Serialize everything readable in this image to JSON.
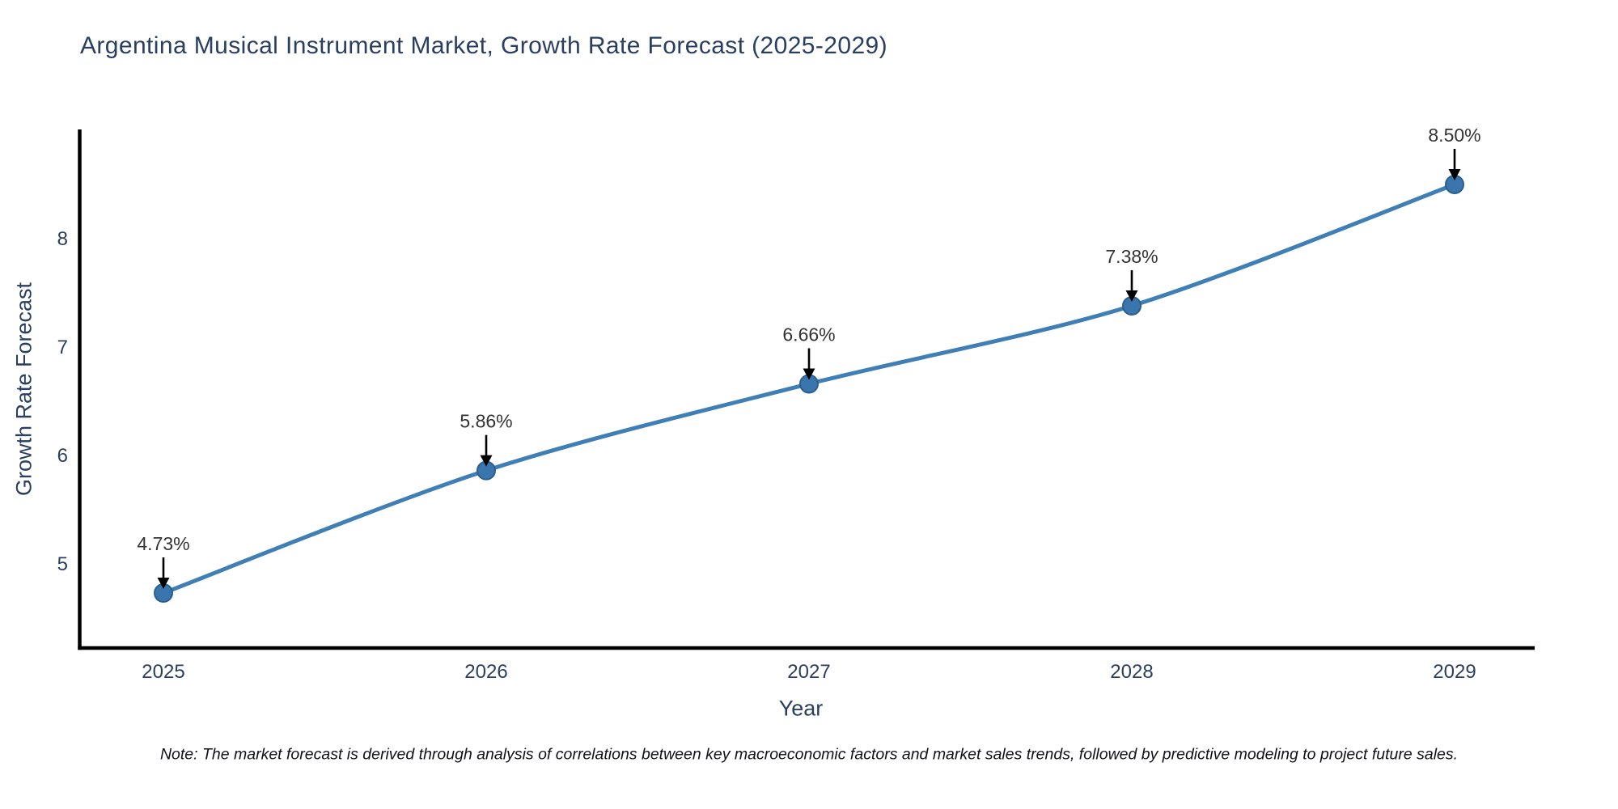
{
  "chart_data": {
    "type": "line",
    "title": "Argentina Musical Instrument Market, Growth Rate Forecast (2025-2029)",
    "xlabel": "Year",
    "ylabel": "Growth Rate Forecast",
    "x": [
      "2025",
      "2026",
      "2027",
      "2028",
      "2029"
    ],
    "values": [
      4.73,
      5.86,
      6.66,
      7.38,
      8.5
    ],
    "point_labels": [
      "4.73%",
      "5.86%",
      "6.66%",
      "7.38%",
      "8.50%"
    ],
    "yticks": [
      5,
      6,
      7,
      8
    ],
    "ylim": [
      4.2,
      9.0
    ],
    "grid": false,
    "legend": "none",
    "line_shape": "spline",
    "annotation_style": "percent value label with downward black arrow above each marker",
    "colors": {
      "line": "#3f7fb5",
      "marker_fill": "#3a76ad",
      "marker_edge": "#2b5f8e",
      "axis": "#000000",
      "tick_text": "#2a3f5f",
      "annotation_text": "#333333",
      "arrow": "#000000",
      "background": "#ffffff"
    },
    "note": "Note: The market forecast is derived through analysis of correlations between key macroeconomic factors and market sales trends, followed by predictive modeling to project future sales."
  }
}
